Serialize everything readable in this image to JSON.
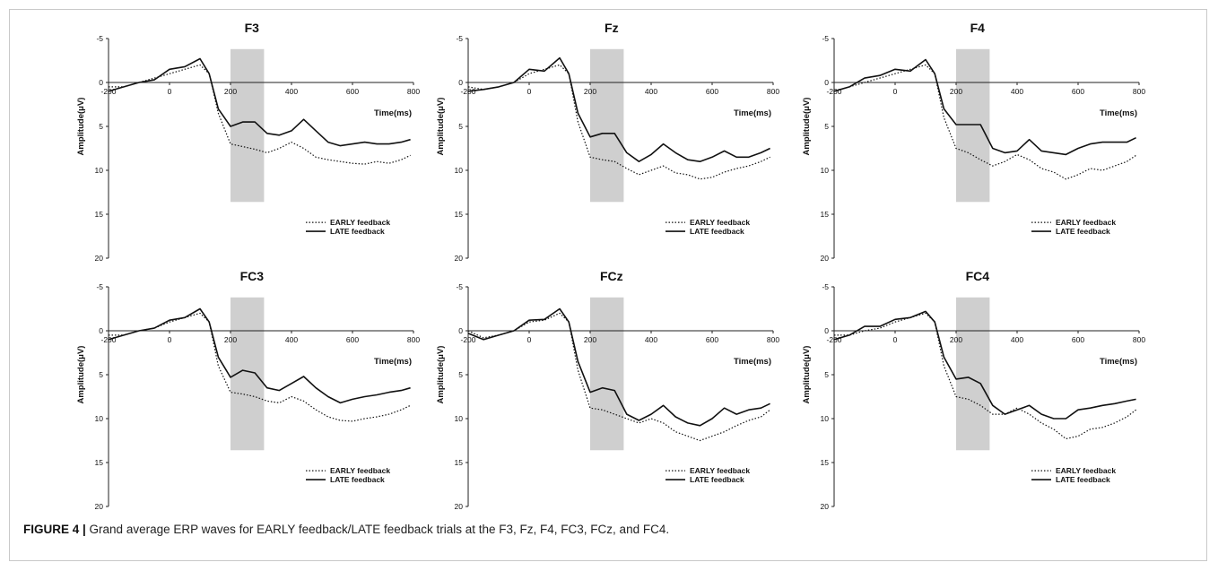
{
  "figure": {
    "caption_label": "FIGURE 4 |",
    "caption_text": " Grand average ERP waves for EARLY feedback/LATE feedback trials at the F3, Fz, F4, FC3, FCz, and FC4."
  },
  "chart_data": [
    {
      "type": "line",
      "title": "F3",
      "xlabel": "Time(ms)",
      "ylabel": "Amplitude(μV)",
      "xlim": [
        -200,
        800
      ],
      "ylim": [
        -5,
        20
      ],
      "y_inverted": true,
      "x_ticks": [
        -200,
        0,
        200,
        400,
        600,
        800
      ],
      "y_ticks": [
        -5,
        0,
        5,
        10,
        15,
        20
      ],
      "shaded_window": [
        200,
        310
      ],
      "legend_position": "bottom-right",
      "series": [
        {
          "name": "EARLY feedback",
          "style": "dotted",
          "x": [
            -200,
            -150,
            -100,
            -50,
            0,
            50,
            100,
            130,
            160,
            200,
            240,
            280,
            320,
            360,
            400,
            440,
            480,
            520,
            560,
            600,
            640,
            680,
            720,
            760,
            790
          ],
          "y": [
            0.5,
            0.5,
            0,
            -0.5,
            -1.0,
            -1.5,
            -2.0,
            -1.0,
            3.5,
            7.0,
            7.3,
            7.6,
            8.0,
            7.5,
            6.8,
            7.5,
            8.5,
            8.8,
            9.0,
            9.2,
            9.3,
            9.0,
            9.2,
            8.8,
            8.3
          ]
        },
        {
          "name": "LATE feedback",
          "style": "solid",
          "x": [
            -200,
            -150,
            -100,
            -50,
            0,
            50,
            100,
            130,
            160,
            200,
            240,
            280,
            320,
            360,
            400,
            440,
            480,
            520,
            560,
            600,
            640,
            680,
            720,
            760,
            790
          ],
          "y": [
            1.0,
            0.5,
            0,
            -0.3,
            -1.5,
            -1.8,
            -2.7,
            -1.0,
            3.0,
            5.0,
            4.5,
            4.5,
            5.8,
            6.0,
            5.5,
            4.2,
            5.5,
            6.8,
            7.2,
            7.0,
            6.8,
            7.0,
            7.0,
            6.8,
            6.5
          ]
        }
      ]
    },
    {
      "type": "line",
      "title": "Fz",
      "xlabel": "Time(ms)",
      "ylabel": "Amplitude(μV)",
      "xlim": [
        -200,
        800
      ],
      "ylim": [
        -5,
        20
      ],
      "y_inverted": true,
      "x_ticks": [
        -200,
        0,
        200,
        400,
        600,
        800
      ],
      "y_ticks": [
        -5,
        0,
        5,
        10,
        15,
        20
      ],
      "shaded_window": [
        200,
        310
      ],
      "legend_position": "bottom-right",
      "series": [
        {
          "name": "EARLY feedback",
          "style": "dotted",
          "x": [
            -200,
            -150,
            -100,
            -50,
            0,
            50,
            100,
            130,
            160,
            200,
            240,
            280,
            320,
            360,
            400,
            440,
            480,
            520,
            560,
            600,
            640,
            680,
            720,
            760,
            790
          ],
          "y": [
            0.5,
            0.8,
            0.5,
            0,
            -1.0,
            -1.5,
            -2.0,
            -1.0,
            4.5,
            8.5,
            8.8,
            9.0,
            9.8,
            10.5,
            10.0,
            9.5,
            10.3,
            10.5,
            11.0,
            10.8,
            10.2,
            9.8,
            9.5,
            9.0,
            8.5
          ]
        },
        {
          "name": "LATE feedback",
          "style": "solid",
          "x": [
            -200,
            -150,
            -100,
            -50,
            0,
            50,
            100,
            130,
            160,
            200,
            240,
            280,
            320,
            360,
            400,
            440,
            480,
            520,
            560,
            600,
            640,
            680,
            720,
            760,
            790
          ],
          "y": [
            1.0,
            0.8,
            0.5,
            0,
            -1.5,
            -1.3,
            -2.8,
            -1.0,
            3.5,
            6.2,
            5.8,
            5.8,
            8.0,
            9.0,
            8.2,
            7.0,
            8.0,
            8.8,
            9.0,
            8.5,
            7.8,
            8.5,
            8.5,
            8.0,
            7.5
          ]
        }
      ]
    },
    {
      "type": "line",
      "title": "F4",
      "xlabel": "Time(ms)",
      "ylabel": "Amplitude(μV)",
      "xlim": [
        -200,
        800
      ],
      "ylim": [
        -5,
        20
      ],
      "y_inverted": true,
      "x_ticks": [
        -200,
        0,
        200,
        400,
        600,
        800
      ],
      "y_ticks": [
        -5,
        0,
        5,
        10,
        15,
        20
      ],
      "shaded_window": [
        200,
        310
      ],
      "legend_position": "bottom-right",
      "series": [
        {
          "name": "EARLY feedback",
          "style": "dotted",
          "x": [
            -200,
            -150,
            -100,
            -50,
            0,
            50,
            100,
            130,
            160,
            200,
            240,
            280,
            320,
            360,
            400,
            440,
            480,
            520,
            560,
            600,
            640,
            680,
            720,
            760,
            790
          ],
          "y": [
            1.0,
            0.5,
            0,
            -0.5,
            -1.0,
            -1.5,
            -2.0,
            -1.0,
            4.0,
            7.5,
            8.0,
            8.8,
            9.5,
            9.0,
            8.2,
            8.8,
            9.8,
            10.2,
            11.0,
            10.5,
            9.8,
            10.0,
            9.5,
            9.0,
            8.3
          ]
        },
        {
          "name": "LATE feedback",
          "style": "solid",
          "x": [
            -200,
            -150,
            -100,
            -50,
            0,
            50,
            100,
            130,
            160,
            200,
            240,
            280,
            320,
            360,
            400,
            440,
            480,
            520,
            560,
            600,
            640,
            680,
            720,
            760,
            790
          ],
          "y": [
            1.0,
            0.5,
            -0.5,
            -0.8,
            -1.5,
            -1.3,
            -2.6,
            -1.0,
            3.0,
            4.8,
            4.8,
            4.8,
            7.5,
            8.0,
            7.8,
            6.5,
            7.8,
            8.0,
            8.2,
            7.5,
            7.0,
            6.8,
            6.8,
            6.8,
            6.3
          ]
        }
      ]
    },
    {
      "type": "line",
      "title": "FC3",
      "xlabel": "Time(ms)",
      "ylabel": "Amplitude(μV)",
      "xlim": [
        -200,
        800
      ],
      "ylim": [
        -5,
        20
      ],
      "y_inverted": true,
      "x_ticks": [
        -200,
        0,
        200,
        400,
        600,
        800
      ],
      "y_ticks": [
        -5,
        0,
        5,
        10,
        15,
        20
      ],
      "shaded_window": [
        200,
        310
      ],
      "legend_position": "bottom-right",
      "series": [
        {
          "name": "EARLY feedback",
          "style": "dotted",
          "x": [
            -200,
            -150,
            -100,
            -50,
            0,
            50,
            100,
            130,
            160,
            200,
            240,
            280,
            320,
            360,
            400,
            440,
            480,
            520,
            560,
            600,
            640,
            680,
            720,
            760,
            790
          ],
          "y": [
            0.5,
            0.5,
            0,
            -0.3,
            -1.0,
            -1.5,
            -2.0,
            -1.0,
            4.0,
            7.0,
            7.2,
            7.5,
            8.0,
            8.2,
            7.5,
            8.0,
            9.0,
            9.8,
            10.2,
            10.3,
            10.0,
            9.8,
            9.5,
            9.0,
            8.5
          ]
        },
        {
          "name": "LATE feedback",
          "style": "solid",
          "x": [
            -200,
            -150,
            -100,
            -50,
            0,
            50,
            100,
            130,
            160,
            200,
            240,
            280,
            320,
            360,
            400,
            440,
            480,
            520,
            560,
            600,
            640,
            680,
            720,
            760,
            790
          ],
          "y": [
            1.0,
            0.5,
            0,
            -0.3,
            -1.2,
            -1.5,
            -2.5,
            -1.0,
            3.0,
            5.3,
            4.5,
            4.8,
            6.5,
            6.8,
            6.0,
            5.2,
            6.5,
            7.5,
            8.2,
            7.8,
            7.5,
            7.3,
            7.0,
            6.8,
            6.5
          ]
        }
      ]
    },
    {
      "type": "line",
      "title": "FCz",
      "xlabel": "Time(ms)",
      "ylabel": "Amplitude(μV)",
      "xlim": [
        -200,
        800
      ],
      "ylim": [
        -5,
        20
      ],
      "y_inverted": true,
      "x_ticks": [
        -200,
        0,
        200,
        400,
        600,
        800
      ],
      "y_ticks": [
        -5,
        0,
        5,
        10,
        15,
        20
      ],
      "shaded_window": [
        200,
        310
      ],
      "legend_position": "bottom-right",
      "series": [
        {
          "name": "EARLY feedback",
          "style": "dotted",
          "x": [
            -200,
            -150,
            -100,
            -50,
            0,
            50,
            100,
            130,
            160,
            200,
            240,
            280,
            320,
            360,
            400,
            440,
            480,
            520,
            560,
            600,
            640,
            680,
            720,
            760,
            790
          ],
          "y": [
            0,
            0.8,
            0.5,
            0,
            -1.0,
            -1.2,
            -2.0,
            -1.0,
            4.5,
            8.8,
            9.0,
            9.5,
            10.0,
            10.5,
            10.0,
            10.5,
            11.5,
            12.0,
            12.5,
            12.0,
            11.5,
            10.8,
            10.2,
            9.8,
            9.0
          ]
        },
        {
          "name": "LATE feedback",
          "style": "solid",
          "x": [
            -200,
            -150,
            -100,
            -50,
            0,
            50,
            100,
            130,
            160,
            200,
            240,
            280,
            320,
            360,
            400,
            440,
            480,
            520,
            560,
            600,
            640,
            680,
            720,
            760,
            790
          ],
          "y": [
            0.3,
            1.0,
            0.5,
            0,
            -1.2,
            -1.3,
            -2.5,
            -1.0,
            3.5,
            7.0,
            6.5,
            6.8,
            9.5,
            10.2,
            9.5,
            8.5,
            9.8,
            10.5,
            10.8,
            10.0,
            8.8,
            9.5,
            9.0,
            8.8,
            8.3
          ]
        }
      ]
    },
    {
      "type": "line",
      "title": "FC4",
      "xlabel": "Time(ms)",
      "ylabel": "Amplitude(μV)",
      "xlim": [
        -200,
        800
      ],
      "ylim": [
        -5,
        20
      ],
      "y_inverted": true,
      "x_ticks": [
        -200,
        0,
        200,
        400,
        600,
        800
      ],
      "y_ticks": [
        -5,
        0,
        5,
        10,
        15,
        20
      ],
      "shaded_window": [
        200,
        310
      ],
      "legend_position": "bottom-right",
      "series": [
        {
          "name": "EARLY feedback",
          "style": "dotted",
          "x": [
            -200,
            -150,
            -100,
            -50,
            0,
            50,
            100,
            130,
            160,
            200,
            240,
            280,
            320,
            360,
            400,
            440,
            480,
            520,
            560,
            600,
            640,
            680,
            720,
            760,
            790
          ],
          "y": [
            0.5,
            0.5,
            0,
            -0.3,
            -1.0,
            -1.5,
            -2.0,
            -1.0,
            4.0,
            7.5,
            7.8,
            8.5,
            9.5,
            9.5,
            8.8,
            9.5,
            10.5,
            11.2,
            12.3,
            12.0,
            11.2,
            11.0,
            10.5,
            9.8,
            9.0
          ]
        },
        {
          "name": "LATE feedback",
          "style": "solid",
          "x": [
            -200,
            -150,
            -100,
            -50,
            0,
            50,
            100,
            130,
            160,
            200,
            240,
            280,
            320,
            360,
            400,
            440,
            480,
            520,
            560,
            600,
            640,
            680,
            720,
            760,
            790
          ],
          "y": [
            1.0,
            0.5,
            -0.5,
            -0.5,
            -1.3,
            -1.5,
            -2.2,
            -1.0,
            3.0,
            5.5,
            5.3,
            6.0,
            8.5,
            9.5,
            9.0,
            8.5,
            9.5,
            10.0,
            10.0,
            9.0,
            8.8,
            8.5,
            8.3,
            8.0,
            7.8
          ]
        }
      ]
    }
  ]
}
